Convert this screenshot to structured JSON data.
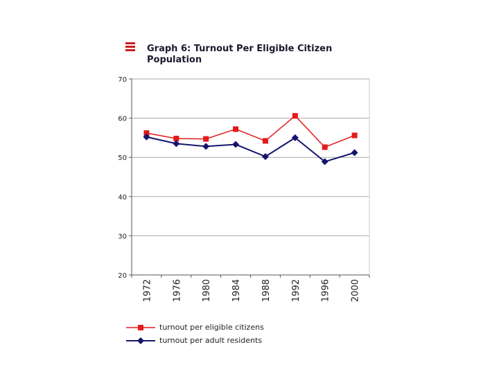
{
  "chart_data": {
    "type": "line",
    "title_lines": [
      "Graph 6: Turnout Per Eligible Citizen",
      "Population"
    ],
    "xlabel": "",
    "ylabel": "",
    "categories": [
      "1972",
      "1976",
      "1980",
      "1984",
      "1988",
      "1992",
      "1996",
      "2000"
    ],
    "ylim": [
      20,
      70
    ],
    "yticks": [
      "70",
      "60",
      "50",
      "40",
      "30",
      "20"
    ],
    "grid": true,
    "legend_position": "bottom",
    "series": [
      {
        "name": "turnout per eligible citizens",
        "color": "#e41a1c",
        "marker": "square",
        "values": [
          56.2,
          54.8,
          54.7,
          57.2,
          54.2,
          60.6,
          52.6,
          55.6
        ]
      },
      {
        "name": "turnout per adult residents",
        "color": "#14146e",
        "marker": "diamond",
        "values": [
          55.2,
          53.5,
          52.8,
          53.3,
          50.2,
          55.0,
          48.9,
          51.2
        ]
      }
    ]
  }
}
